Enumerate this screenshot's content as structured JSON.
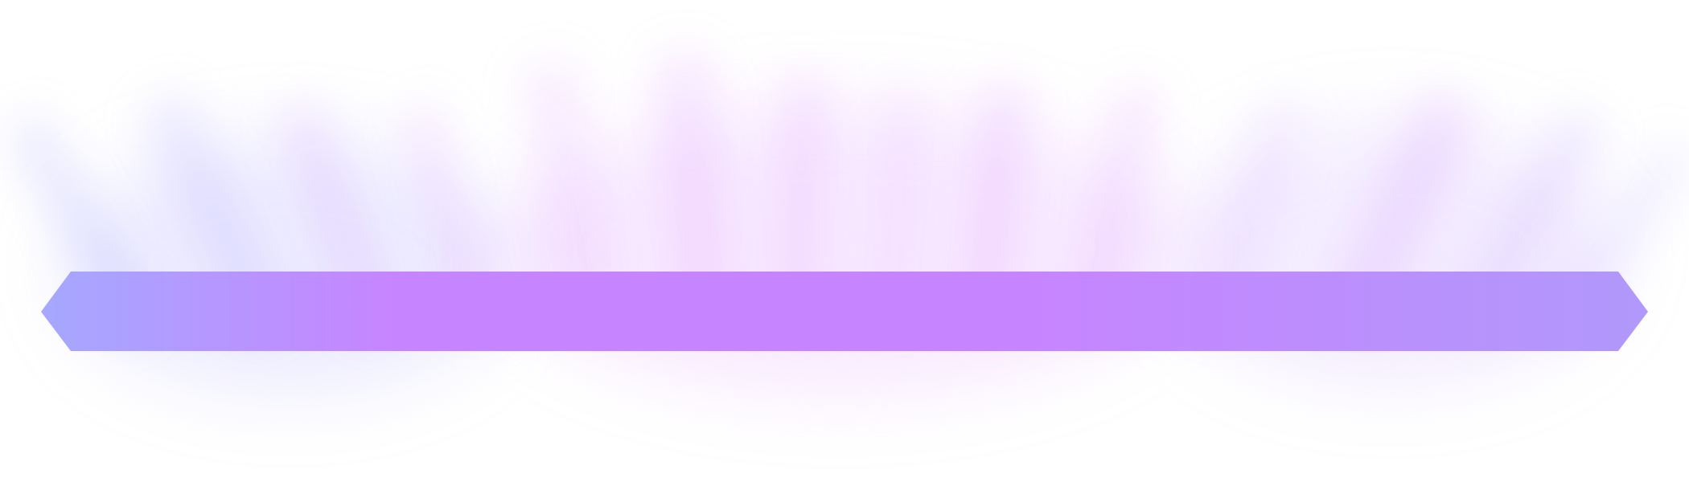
{
  "banner": {
    "colors": {
      "edge_start": "#A5A8FF",
      "center": "#C685FF",
      "edge_end": "#B198FB",
      "glow_blue": "#B7B7FF",
      "glow_violet": "#E4A8FF",
      "background": "#FFFFFF"
    },
    "shape": "elongated-hexagon",
    "effect": "soft-radiant-glow"
  }
}
